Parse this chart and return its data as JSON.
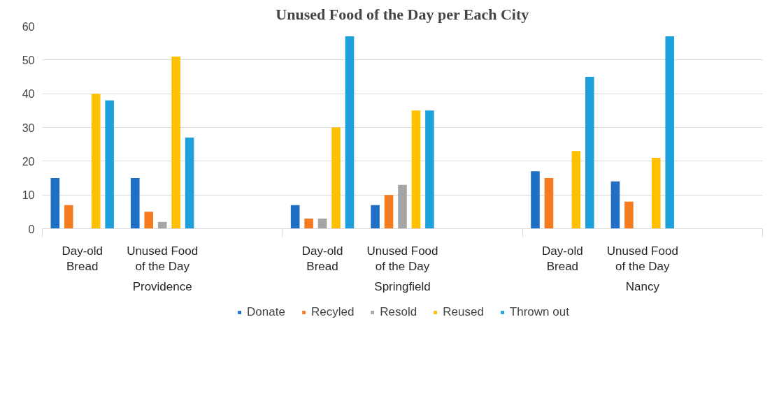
{
  "chart_data": {
    "type": "bar",
    "title": "Unused Food of the Day per Each City",
    "categories": [
      "Day-old Bread",
      "Unused Food of the Day",
      null,
      "Day-old Bread",
      "Unused Food of the Day",
      null,
      "Day-old Bread",
      "Unused Food of the Day",
      null
    ],
    "annotations": [
      "Providence",
      "Springfield",
      "Nancy"
    ],
    "series": [
      {
        "name": "Donate",
        "color": "#1f6fc5",
        "values": [
          15,
          15,
          null,
          7,
          7,
          null,
          17,
          14,
          null
        ]
      },
      {
        "name": "Recyled",
        "color": "#f47b20",
        "values": [
          7,
          5,
          null,
          3,
          10,
          null,
          15,
          8,
          null
        ]
      },
      {
        "name": "Resold",
        "color": "#a5a5a5",
        "values": [
          null,
          2,
          null,
          3,
          13,
          null,
          null,
          null,
          null
        ]
      },
      {
        "name": "Reused",
        "color": "#ffc000",
        "values": [
          40,
          51,
          null,
          30,
          35,
          null,
          23,
          21,
          null
        ]
      },
      {
        "name": "Thrown out",
        "color": "#1ea1db",
        "values": [
          38,
          27,
          null,
          57,
          35,
          null,
          45,
          57,
          null
        ]
      }
    ],
    "ylim": [
      0,
      60
    ],
    "yticks": [
      0,
      10,
      20,
      30,
      40,
      50,
      60
    ],
    "grid": "y",
    "legend": "bottom"
  }
}
